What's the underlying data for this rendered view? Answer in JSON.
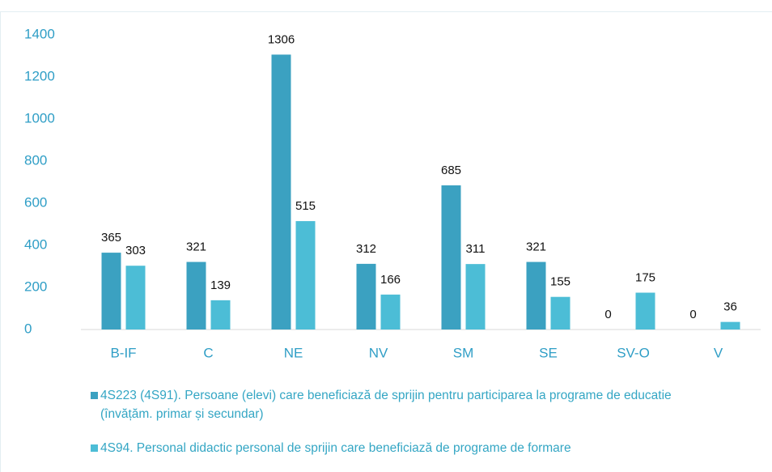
{
  "chart_data": {
    "type": "bar",
    "categories": [
      "B-IF",
      "C",
      "NE",
      "NV",
      "SM",
      "SE",
      "SV-O",
      "V"
    ],
    "series": [
      {
        "name": "4S223 (4S91). Persoane (elevi) care beneficiază de sprijin pentru participarea la programe de educatie (învățăm. primar și secundar)",
        "color": "#3ba1c1",
        "values": [
          365,
          321,
          1306,
          312,
          685,
          321,
          0,
          0
        ]
      },
      {
        "name": "4S94. Personal didactic personal de sprijin care beneficiază de programe de formare",
        "color": "#4cbdd6",
        "values": [
          303,
          139,
          515,
          166,
          311,
          155,
          175,
          36
        ]
      }
    ],
    "ylim": [
      0,
      1400
    ],
    "yticks": [
      0,
      200,
      400,
      600,
      800,
      1000,
      1200,
      1400
    ],
    "legend": "bottom",
    "grid": false
  }
}
